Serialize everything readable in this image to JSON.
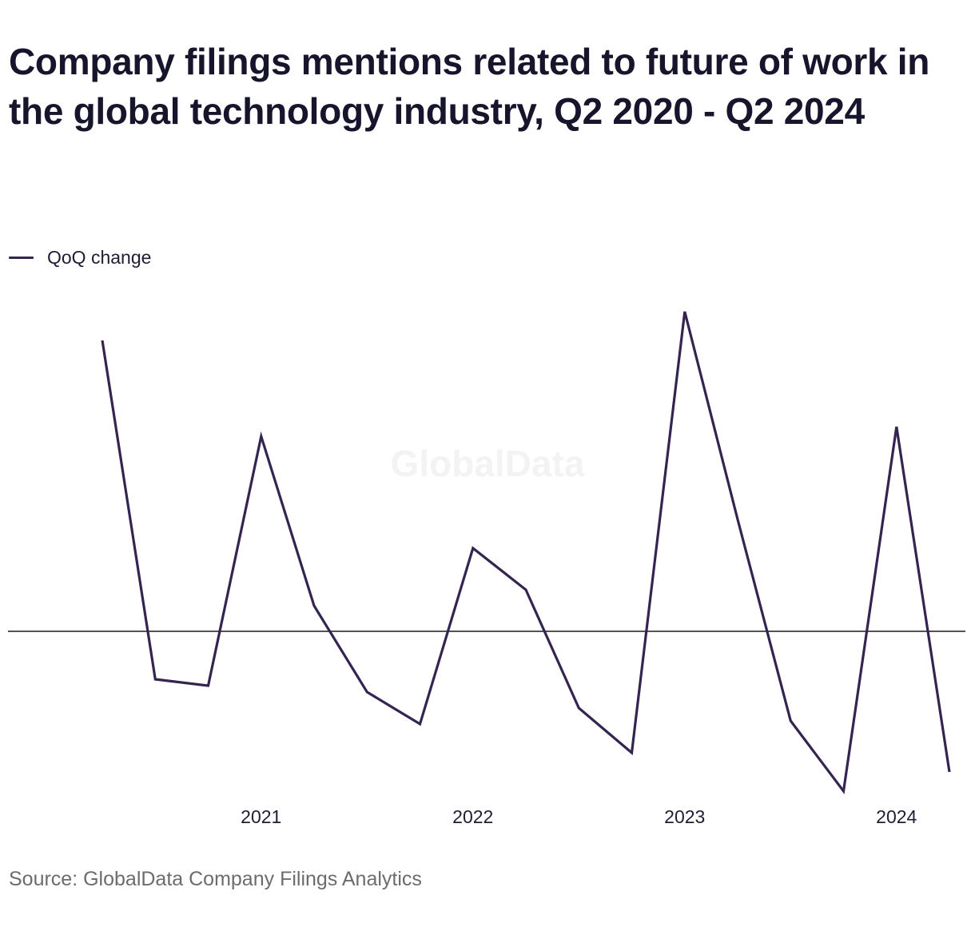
{
  "title": "Company filings mentions related to future of work in the global technology industry, Q2 2020 - Q2 2024",
  "legend": {
    "label": "QoQ change",
    "color": "#33254f"
  },
  "watermark": "GlobalData",
  "source": "Source: GlobalData Company Filings Analytics",
  "chart_data": {
    "type": "line",
    "x": [
      "Q2 2020",
      "Q3 2020",
      "Q4 2020",
      "Q1 2021",
      "Q2 2021",
      "Q3 2021",
      "Q4 2021",
      "Q1 2022",
      "Q2 2022",
      "Q3 2022",
      "Q4 2022",
      "Q1 2023",
      "Q2 2023",
      "Q3 2023",
      "Q4 2023",
      "Q1 2024",
      "Q2 2024"
    ],
    "tick_labels": [
      {
        "label": "2021",
        "at": "Q1 2021"
      },
      {
        "label": "2022",
        "at": "Q1 2022"
      },
      {
        "label": "2023",
        "at": "Q1 2023"
      },
      {
        "label": "2024",
        "at": "Q1 2024"
      }
    ],
    "series": [
      {
        "name": "QoQ change",
        "color": "#33254f",
        "values": [
          0.91,
          -0.15,
          -0.17,
          0.61,
          0.08,
          -0.19,
          -0.29,
          0.26,
          0.13,
          -0.24,
          -0.38,
          1.0,
          0.35,
          -0.28,
          -0.5,
          0.64,
          -0.44
        ]
      }
    ],
    "ylim": [
      -0.5,
      1.0
    ],
    "zero_line": true,
    "grid": false,
    "legend_position": "top-left"
  }
}
